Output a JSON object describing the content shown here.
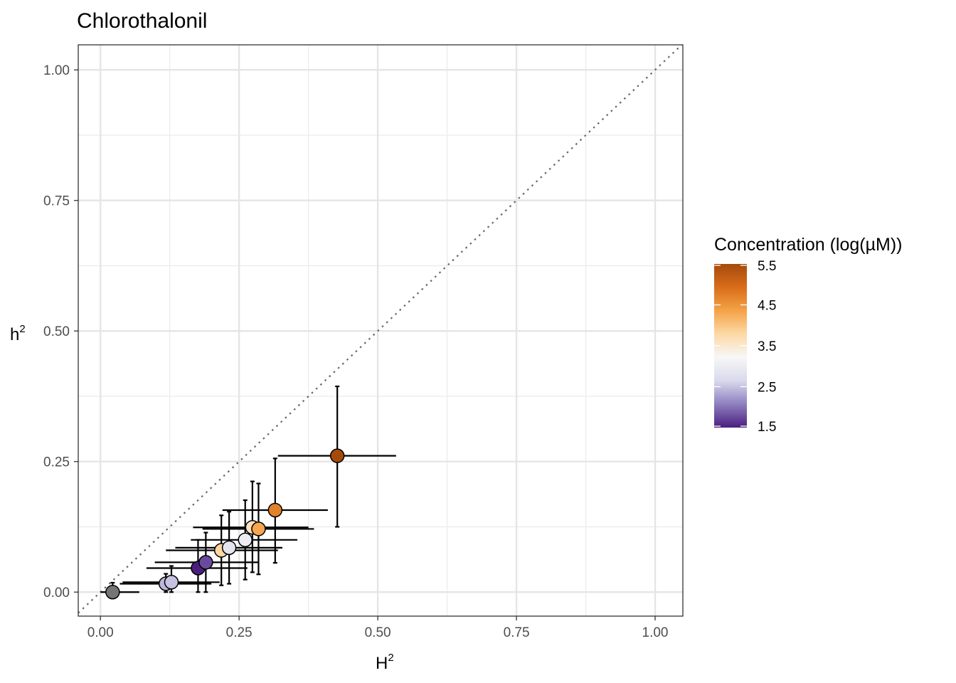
{
  "chart_data": {
    "type": "scatter",
    "title": "Chlorothalonil",
    "xlabel": "H",
    "xlabel_superscript": "2",
    "ylabel": "h",
    "ylabel_superscript": "2",
    "xlim": [
      -0.04,
      1.05
    ],
    "ylim": [
      -0.046,
      1.048
    ],
    "x_ticks": [
      0.0,
      0.25,
      0.5,
      0.75,
      1.0
    ],
    "x_tick_labels": [
      "0.00",
      "0.25",
      "0.50",
      "0.75",
      "1.00"
    ],
    "y_ticks": [
      0.0,
      0.25,
      0.5,
      0.75,
      1.0
    ],
    "y_tick_labels": [
      "0.00",
      "0.25",
      "0.50",
      "0.75",
      "1.00"
    ],
    "minor_grid": [
      0.125,
      0.375,
      0.625,
      0.875
    ],
    "grid": true,
    "reference_line": {
      "type": "identity",
      "style": "dotted",
      "color": "#666666"
    },
    "colorbar": {
      "title": "Concentration (log(µM))",
      "min": 1.5,
      "max": 5.5,
      "ticks": [
        1.5,
        2.5,
        3.5,
        4.5,
        5.5
      ],
      "tick_labels": [
        "1.5",
        "2.5",
        "3.5",
        "4.5",
        "5.5"
      ],
      "colors": [
        "#4b1e7e",
        "#8e7fbf",
        "#d9d9ec",
        "#f7f7f7",
        "#fdd9a6",
        "#f4a347",
        "#d96d1a",
        "#a64a0c"
      ],
      "position": "right"
    },
    "points": [
      {
        "x": 0.022,
        "y": 0.0,
        "xerr": [
          0.0,
          0.07
        ],
        "yerr": [
          0.0,
          0.018
        ],
        "color": "#757575"
      },
      {
        "x": 0.118,
        "y": 0.016,
        "xerr": [
          0.035,
          0.2
        ],
        "yerr": [
          0.0,
          0.035
        ],
        "color": "#bdb5da"
      },
      {
        "x": 0.128,
        "y": 0.019,
        "xerr": [
          0.04,
          0.215
        ],
        "yerr": [
          0.0,
          0.05
        ],
        "color": "#c7c2e1"
      },
      {
        "x": 0.176,
        "y": 0.046,
        "xerr": [
          0.083,
          0.265
        ],
        "yerr": [
          0.0,
          0.1
        ],
        "color": "#4b1e7e"
      },
      {
        "x": 0.19,
        "y": 0.057,
        "xerr": [
          0.098,
          0.285
        ],
        "yerr": [
          0.0,
          0.114
        ],
        "color": "#6a4a9e"
      },
      {
        "x": 0.218,
        "y": 0.08,
        "xerr": [
          0.118,
          0.32
        ],
        "yerr": [
          0.013,
          0.147
        ],
        "color": "#fdd6a2"
      },
      {
        "x": 0.232,
        "y": 0.085,
        "xerr": [
          0.135,
          0.328
        ],
        "yerr": [
          0.016,
          0.154
        ],
        "color": "#e4e4ef"
      },
      {
        "x": 0.261,
        "y": 0.1,
        "xerr": [
          0.163,
          0.355
        ],
        "yerr": [
          0.024,
          0.176
        ],
        "color": "#ececf2"
      },
      {
        "x": 0.274,
        "y": 0.124,
        "xerr": [
          0.167,
          0.375
        ],
        "yerr": [
          0.038,
          0.212
        ],
        "color": "#fde2bf"
      },
      {
        "x": 0.285,
        "y": 0.121,
        "xerr": [
          0.184,
          0.385
        ],
        "yerr": [
          0.034,
          0.208
        ],
        "color": "#f5a64e"
      },
      {
        "x": 0.315,
        "y": 0.157,
        "xerr": [
          0.22,
          0.41
        ],
        "yerr": [
          0.056,
          0.256
        ],
        "color": "#e0822c"
      },
      {
        "x": 0.427,
        "y": 0.261,
        "xerr": [
          0.32,
          0.533
        ],
        "yerr": [
          0.125,
          0.394
        ],
        "color": "#a64a0c"
      }
    ]
  }
}
